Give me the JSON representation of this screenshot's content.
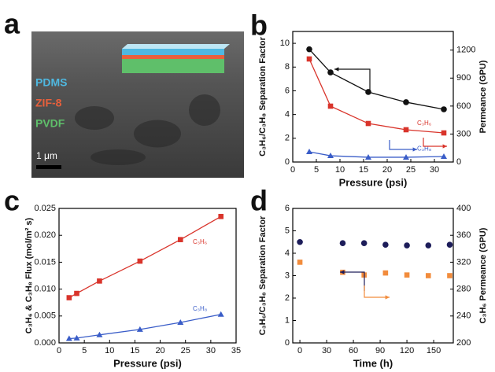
{
  "chart_data": [
    {
      "type": "image",
      "panel": "a",
      "layers": [
        {
          "name": "PDMS",
          "color": "#4fb8e0"
        },
        {
          "name": "ZIF-8",
          "color": "#e8603c"
        },
        {
          "name": "PVDF",
          "color": "#5fbf6a"
        }
      ],
      "scale_bar": "1 μm"
    },
    {
      "type": "line",
      "panel": "b",
      "xlabel": "Pressure (psi)",
      "ylabel": "C₃H₆/C₃H₈ Separation Factor",
      "y2label": "Permeance (GPU)",
      "x": [
        3.5,
        8,
        16,
        24,
        32
      ],
      "xlim": [
        0,
        34
      ],
      "xticks": [
        0,
        5,
        10,
        15,
        20,
        25,
        30
      ],
      "ylim": [
        0,
        11
      ],
      "yticks": [
        0,
        2,
        4,
        6,
        8,
        10
      ],
      "y2lim": [
        0,
        1400
      ],
      "y2ticks": [
        0,
        300,
        600,
        900,
        1200
      ],
      "series": [
        {
          "color": "#111111",
          "marker": "circle",
          "values": [
            9.5,
            7.55,
            5.9,
            5.04,
            4.44
          ]
        },
        {
          "name": "C₃H₆",
          "color": "#d9342b",
          "marker": "square",
          "axis": "y2",
          "values": [
            1105,
            599,
            413,
            346,
            312
          ]
        },
        {
          "name": "C₃H₈",
          "color": "#3a5dc8",
          "marker": "triangle",
          "axis": "y2",
          "values": [
            110,
            67,
            51,
            51,
            59
          ]
        }
      ]
    },
    {
      "type": "line",
      "panel": "c",
      "xlabel": "Pressure (psi)",
      "ylabel": "C₃H₆ & C₃H₈ Flux (mol/m² s)",
      "x": [
        2,
        3.5,
        8,
        16,
        24,
        32
      ],
      "xlim": [
        0,
        35
      ],
      "xticks": [
        0,
        5,
        10,
        15,
        20,
        25,
        30,
        35
      ],
      "ylim": [
        0,
        0.025
      ],
      "yticks": [
        {
          "value": 0,
          "label": "0.000"
        },
        {
          "value": 0.005,
          "label": "0.005"
        },
        {
          "value": 0.01,
          "label": "0.010"
        },
        {
          "value": 0.015,
          "label": "0.015"
        },
        {
          "value": 0.02,
          "label": "0.020"
        },
        {
          "value": 0.025,
          "label": "0.025"
        }
      ],
      "series": [
        {
          "name": "C₃H₆",
          "color": "#d9342b",
          "marker": "square",
          "values": [
            0.0084,
            0.0092,
            0.0115,
            0.0152,
            0.0192,
            0.0235
          ]
        },
        {
          "name": "C₃H₈",
          "color": "#3a5dc8",
          "marker": "triangle",
          "values": [
            0.0008,
            0.0009,
            0.0015,
            0.0025,
            0.0038,
            0.0053
          ]
        }
      ]
    },
    {
      "type": "scatter",
      "panel": "d",
      "xlabel": "Time (h)",
      "ylabel": "C₃H₆/C₃H₈ Separation Factor",
      "y2label": "C₃H₆ Permeance (GPU)",
      "x": [
        0,
        48,
        72,
        96,
        120,
        144,
        168
      ],
      "xlim": [
        -8,
        172
      ],
      "xticks": [
        0,
        30,
        60,
        90,
        120,
        150
      ],
      "ylim": [
        0,
        6
      ],
      "yticks": [
        0,
        1,
        2,
        3,
        4,
        5,
        6
      ],
      "y2lim": [
        200,
        400
      ],
      "y2ticks": [
        200,
        240,
        280,
        320,
        360,
        400
      ],
      "series": [
        {
          "color": "#1d1d5a",
          "marker": "circle",
          "values": [
            4.5,
            4.45,
            4.45,
            4.38,
            4.35,
            4.35,
            4.38
          ]
        },
        {
          "color": "#f28c3c",
          "marker": "square",
          "axis": "y2",
          "values": [
            320,
            305,
            301,
            304,
            301,
            300,
            300
          ]
        }
      ]
    }
  ]
}
